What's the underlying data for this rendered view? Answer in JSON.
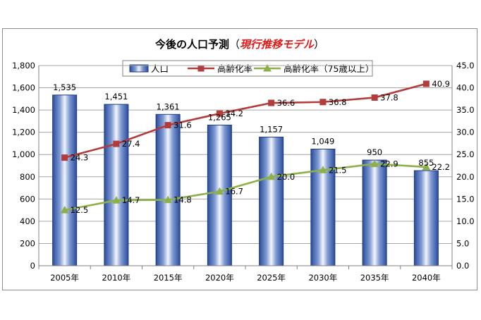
{
  "chart_data": {
    "type": "bar",
    "title_main": "今後の人口予測",
    "title_open": "（",
    "title_sub": "現行推移モデル",
    "title_close": "）",
    "categories": [
      "2005年",
      "2010年",
      "2015年",
      "2020年",
      "2025年",
      "2030年",
      "2035年",
      "2040年"
    ],
    "ylim_left": [
      0,
      1800
    ],
    "yticks_left": [
      "0",
      "200",
      "400",
      "600",
      "800",
      "1,000",
      "1,200",
      "1,400",
      "1,600",
      "1,800"
    ],
    "ylim_right": [
      0,
      45
    ],
    "yticks_right": [
      "0.0",
      "5.0",
      "10.0",
      "15.0",
      "20.0",
      "25.0",
      "30.0",
      "35.0",
      "40.0",
      "45.0"
    ],
    "grid": true,
    "legend_position": "top-center",
    "series": [
      {
        "name": "人口",
        "type": "bar",
        "axis": "left",
        "color": "#3a5fb0",
        "values": [
          1535,
          1451,
          1361,
          1265,
          1157,
          1049,
          950,
          855
        ],
        "labels": [
          "1,535",
          "1,451",
          "1,361",
          "1,265",
          "1,157",
          "1,049",
          "950",
          "855"
        ]
      },
      {
        "name": "高齢化率",
        "type": "line",
        "axis": "right",
        "color": "#b23b3b",
        "marker": "square",
        "values": [
          24.3,
          27.4,
          31.6,
          34.2,
          36.6,
          36.8,
          37.8,
          40.9
        ],
        "labels": [
          "24.3",
          "27.4",
          "31.6",
          "34.2",
          "36.6",
          "36.8",
          "37.8",
          "40.9"
        ]
      },
      {
        "name": "高齢化率（75歳以上）",
        "type": "line",
        "axis": "right",
        "color": "#8db04a",
        "marker": "triangle",
        "values": [
          12.5,
          14.7,
          14.8,
          16.7,
          20.0,
          21.5,
          22.9,
          22.2
        ],
        "labels": [
          "12.5",
          "14.7",
          "14.8",
          "16.7",
          "20.0",
          "21.5",
          "22.9",
          "22.2"
        ]
      }
    ]
  }
}
